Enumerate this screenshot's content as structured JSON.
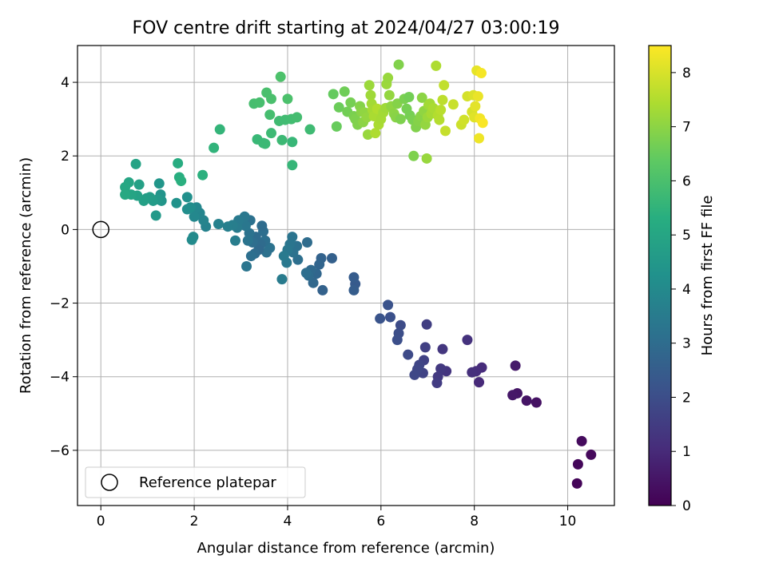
{
  "chart_data": {
    "type": "scatter",
    "title": "FOV centre drift starting at 2024/04/27 03:00:19",
    "xlabel": "Angular distance from reference (arcmin)",
    "ylabel": "Rotation from reference (arcmin)",
    "xlim": [
      -0.5,
      11.0
    ],
    "ylim": [
      -7.5,
      5.0
    ],
    "xticks": [
      0,
      2,
      4,
      6,
      8,
      10
    ],
    "yticks": [
      -6,
      -4,
      -2,
      0,
      2,
      4
    ],
    "xtick_labels": [
      "0",
      "2",
      "4",
      "6",
      "8",
      "10"
    ],
    "ytick_labels": [
      "−6",
      "−4",
      "−2",
      "0",
      "2",
      "4"
    ],
    "grid": true,
    "legend": {
      "placement": "lower-left",
      "label": "Reference platepar"
    },
    "reference_point": {
      "x": 0,
      "y": 0
    },
    "colorbar": {
      "label": "Hours from first FF file",
      "range": [
        0,
        8.5
      ],
      "ticks": [
        0,
        1,
        2,
        3,
        4,
        5,
        6,
        7,
        8
      ],
      "tick_labels": [
        "0",
        "1",
        "2",
        "3",
        "4",
        "5",
        "6",
        "7",
        "8"
      ],
      "colormap": "viridis"
    },
    "series": [
      {
        "points": [
          [
            10.2,
            -6.9,
            0.1
          ],
          [
            10.22,
            -6.38,
            0.15
          ],
          [
            10.5,
            -6.12,
            0.2
          ],
          [
            10.3,
            -5.75,
            0.25
          ],
          [
            9.33,
            -4.7,
            0.4
          ],
          [
            9.12,
            -4.65,
            0.45
          ],
          [
            8.92,
            -4.45,
            0.5
          ],
          [
            8.82,
            -4.5,
            0.55
          ],
          [
            8.88,
            -3.7,
            0.6
          ],
          [
            8.1,
            -4.15,
            1.0
          ],
          [
            8.16,
            -3.75,
            1.05
          ],
          [
            8.04,
            -3.85,
            1.1
          ],
          [
            7.95,
            -3.88,
            1.15
          ],
          [
            7.85,
            -3.0,
            1.2
          ],
          [
            7.4,
            -3.85,
            1.3
          ],
          [
            7.32,
            -3.25,
            1.35
          ],
          [
            7.28,
            -3.78,
            1.4
          ],
          [
            7.22,
            -4.0,
            1.45
          ],
          [
            7.2,
            -4.17,
            1.5
          ],
          [
            6.98,
            -2.58,
            1.55
          ],
          [
            6.95,
            -3.2,
            1.6
          ],
          [
            6.92,
            -3.55,
            1.65
          ],
          [
            6.9,
            -3.9,
            1.7
          ],
          [
            6.82,
            -3.68,
            1.75
          ],
          [
            6.78,
            -3.8,
            1.8
          ],
          [
            6.72,
            -3.95,
            1.85
          ],
          [
            6.58,
            -3.4,
            1.9
          ],
          [
            6.42,
            -2.6,
            1.95
          ],
          [
            6.38,
            -2.82,
            2.0
          ],
          [
            6.35,
            -3.0,
            2.05
          ],
          [
            6.2,
            -2.38,
            2.1
          ],
          [
            6.15,
            -2.05,
            2.15
          ],
          [
            5.98,
            -2.42,
            2.2
          ],
          [
            5.45,
            -1.48,
            2.4
          ],
          [
            5.42,
            -1.3,
            2.45
          ],
          [
            5.42,
            -1.65,
            2.5
          ],
          [
            4.95,
            -0.78,
            2.6
          ],
          [
            4.75,
            -1.65,
            2.65
          ],
          [
            4.72,
            -0.78,
            2.7
          ],
          [
            4.68,
            -0.95,
            2.75
          ],
          [
            4.62,
            -1.2,
            2.8
          ],
          [
            4.55,
            -1.45,
            2.85
          ],
          [
            4.5,
            -1.1,
            2.9
          ],
          [
            4.45,
            -1.25,
            2.95
          ],
          [
            4.42,
            -0.35,
            3.0
          ],
          [
            4.4,
            -1.18,
            3.05
          ],
          [
            4.22,
            -0.82,
            3.1
          ],
          [
            4.2,
            -0.45,
            3.15
          ],
          [
            4.12,
            -0.62,
            3.2
          ],
          [
            4.1,
            -0.2,
            3.25
          ],
          [
            4.05,
            -0.4,
            3.3
          ],
          [
            4.0,
            -0.55,
            3.35
          ],
          [
            3.98,
            -0.9,
            3.4
          ],
          [
            3.92,
            -0.72,
            3.45
          ],
          [
            3.88,
            -1.35,
            3.5
          ],
          [
            3.62,
            -0.5,
            3.2
          ],
          [
            3.55,
            -0.62,
            3.15
          ],
          [
            3.52,
            -0.3,
            3.1
          ],
          [
            3.48,
            -0.05,
            3.05
          ],
          [
            3.45,
            0.1,
            3.0
          ],
          [
            3.42,
            -0.4,
            2.95
          ],
          [
            3.38,
            -0.55,
            2.9
          ],
          [
            3.32,
            -0.2,
            2.95
          ],
          [
            3.3,
            -0.65,
            3.0
          ],
          [
            3.25,
            -0.35,
            3.05
          ],
          [
            3.22,
            -0.72,
            3.1
          ],
          [
            3.2,
            0.25,
            3.15
          ],
          [
            3.18,
            -0.1,
            3.2
          ],
          [
            3.15,
            -0.3,
            3.25
          ],
          [
            3.12,
            -1.0,
            3.3
          ],
          [
            3.1,
            0.1,
            3.35
          ],
          [
            3.08,
            0.35,
            3.4
          ],
          [
            2.95,
            0.25,
            3.45
          ],
          [
            2.92,
            0.05,
            3.5
          ],
          [
            2.88,
            -0.3,
            3.55
          ],
          [
            2.82,
            0.12,
            3.6
          ],
          [
            2.72,
            0.08,
            3.65
          ],
          [
            2.52,
            0.15,
            3.7
          ],
          [
            2.25,
            0.08,
            3.75
          ],
          [
            2.2,
            0.25,
            3.8
          ],
          [
            2.12,
            0.45,
            3.85
          ],
          [
            2.05,
            0.6,
            3.9
          ],
          [
            2.0,
            0.35,
            3.95
          ],
          [
            1.98,
            -0.2,
            4.0
          ],
          [
            1.95,
            -0.28,
            4.05
          ],
          [
            1.92,
            0.6,
            4.1
          ],
          [
            1.85,
            0.55,
            4.15
          ],
          [
            1.85,
            0.88,
            4.2
          ],
          [
            1.62,
            0.72,
            4.3
          ],
          [
            1.28,
            0.95,
            4.35
          ],
          [
            1.3,
            0.78,
            4.4
          ],
          [
            1.25,
            1.25,
            4.45
          ],
          [
            1.22,
            0.82,
            4.5
          ],
          [
            1.18,
            0.38,
            4.55
          ],
          [
            1.12,
            0.78,
            4.6
          ],
          [
            1.05,
            0.88,
            4.65
          ],
          [
            0.98,
            0.85,
            4.7
          ],
          [
            0.92,
            0.78,
            4.75
          ],
          [
            0.82,
            1.22,
            4.8
          ],
          [
            0.78,
            0.92,
            4.85
          ],
          [
            0.75,
            1.78,
            4.9
          ],
          [
            0.65,
            0.95,
            4.95
          ],
          [
            0.6,
            1.28,
            5.0
          ],
          [
            0.52,
            1.15,
            5.05
          ],
          [
            0.52,
            0.95,
            5.1
          ],
          [
            1.65,
            1.8,
            5.25
          ],
          [
            1.68,
            1.42,
            5.3
          ],
          [
            1.72,
            1.32,
            5.35
          ],
          [
            2.18,
            1.48,
            5.4
          ],
          [
            2.42,
            2.22,
            5.5
          ],
          [
            2.55,
            2.72,
            5.55
          ],
          [
            4.1,
            1.75,
            5.6
          ],
          [
            4.1,
            2.38,
            5.62
          ],
          [
            3.35,
            2.45,
            5.65
          ],
          [
            3.48,
            2.35,
            5.68
          ],
          [
            3.52,
            2.33,
            5.7
          ],
          [
            3.88,
            2.43,
            5.72
          ],
          [
            3.65,
            2.62,
            5.75
          ],
          [
            4.48,
            2.72,
            5.78
          ],
          [
            3.82,
            2.95,
            5.8
          ],
          [
            3.95,
            2.98,
            5.82
          ],
          [
            4.08,
            3.0,
            5.85
          ],
          [
            4.2,
            3.05,
            5.88
          ],
          [
            3.62,
            3.12,
            5.9
          ],
          [
            3.28,
            3.42,
            5.92
          ],
          [
            3.4,
            3.45,
            5.95
          ],
          [
            3.55,
            3.72,
            5.98
          ],
          [
            3.65,
            3.55,
            6.0
          ],
          [
            4.0,
            3.55,
            6.02
          ],
          [
            3.85,
            4.15,
            6.05
          ],
          [
            4.98,
            3.68,
            6.45
          ],
          [
            5.05,
            2.8,
            6.5
          ],
          [
            5.1,
            3.32,
            6.55
          ],
          [
            5.22,
            3.75,
            6.6
          ],
          [
            5.28,
            3.2,
            6.65
          ],
          [
            5.35,
            3.45,
            6.7
          ],
          [
            5.42,
            3.08,
            6.75
          ],
          [
            5.45,
            3.0,
            6.8
          ],
          [
            5.5,
            2.85,
            6.85
          ],
          [
            5.55,
            3.35,
            6.9
          ],
          [
            5.58,
            3.2,
            6.95
          ],
          [
            5.62,
            2.92,
            7.0
          ],
          [
            5.65,
            3.18,
            7.05
          ],
          [
            5.7,
            3.05,
            7.1
          ],
          [
            5.72,
            2.58,
            7.15
          ],
          [
            5.75,
            3.92,
            7.2
          ],
          [
            5.78,
            3.65,
            7.25
          ],
          [
            5.8,
            3.42,
            7.3
          ],
          [
            5.82,
            3.25,
            7.35
          ],
          [
            5.85,
            3.08,
            7.4
          ],
          [
            5.88,
            2.62,
            7.45
          ],
          [
            5.92,
            3.28,
            7.5
          ],
          [
            5.95,
            2.85,
            7.4
          ],
          [
            6.0,
            3.0,
            7.35
          ],
          [
            6.05,
            3.18,
            7.3
          ],
          [
            6.1,
            3.3,
            7.25
          ],
          [
            6.12,
            3.95,
            7.2
          ],
          [
            6.15,
            4.12,
            7.15
          ],
          [
            6.18,
            3.65,
            7.1
          ],
          [
            6.22,
            3.35,
            7.05
          ],
          [
            6.28,
            3.15,
            7.0
          ],
          [
            6.32,
            3.05,
            6.95
          ],
          [
            6.35,
            3.42,
            6.9
          ],
          [
            6.38,
            4.48,
            6.85
          ],
          [
            6.42,
            3.0,
            6.8
          ],
          [
            6.5,
            3.55,
            6.75
          ],
          [
            6.55,
            3.28,
            6.7
          ],
          [
            6.6,
            3.6,
            6.65
          ],
          [
            6.62,
            3.1,
            6.7
          ],
          [
            6.68,
            2.98,
            6.75
          ],
          [
            6.7,
            2.0,
            6.8
          ],
          [
            6.75,
            2.78,
            6.85
          ],
          [
            6.8,
            2.95,
            6.9
          ],
          [
            6.85,
            3.08,
            6.95
          ],
          [
            6.88,
            3.58,
            7.0
          ],
          [
            6.92,
            3.22,
            7.05
          ],
          [
            6.95,
            2.85,
            7.1
          ],
          [
            6.98,
            1.93,
            7.15
          ],
          [
            7.0,
            3.05,
            7.2
          ],
          [
            7.02,
            3.38,
            7.25
          ],
          [
            7.05,
            3.42,
            7.3
          ],
          [
            7.08,
            3.15,
            7.35
          ],
          [
            7.12,
            3.3,
            7.4
          ],
          [
            7.18,
            4.45,
            7.45
          ],
          [
            7.22,
            3.1,
            7.5
          ],
          [
            7.25,
            2.98,
            7.55
          ],
          [
            7.28,
            3.25,
            7.6
          ],
          [
            7.32,
            3.52,
            7.65
          ],
          [
            7.35,
            3.92,
            7.7
          ],
          [
            7.38,
            2.68,
            7.75
          ],
          [
            7.55,
            3.4,
            7.8
          ],
          [
            7.72,
            2.85,
            7.85
          ],
          [
            7.78,
            2.98,
            7.9
          ],
          [
            7.85,
            3.62,
            7.95
          ],
          [
            7.95,
            3.2,
            8.0
          ],
          [
            7.98,
            3.65,
            8.05
          ],
          [
            8.0,
            3.05,
            8.1
          ],
          [
            8.02,
            3.35,
            8.15
          ],
          [
            8.05,
            4.32,
            8.2
          ],
          [
            8.08,
            3.62,
            8.25
          ],
          [
            8.1,
            2.48,
            8.3
          ],
          [
            8.12,
            3.02,
            8.35
          ],
          [
            8.15,
            4.25,
            8.4
          ],
          [
            8.18,
            2.9,
            8.45
          ]
        ]
      }
    ]
  }
}
